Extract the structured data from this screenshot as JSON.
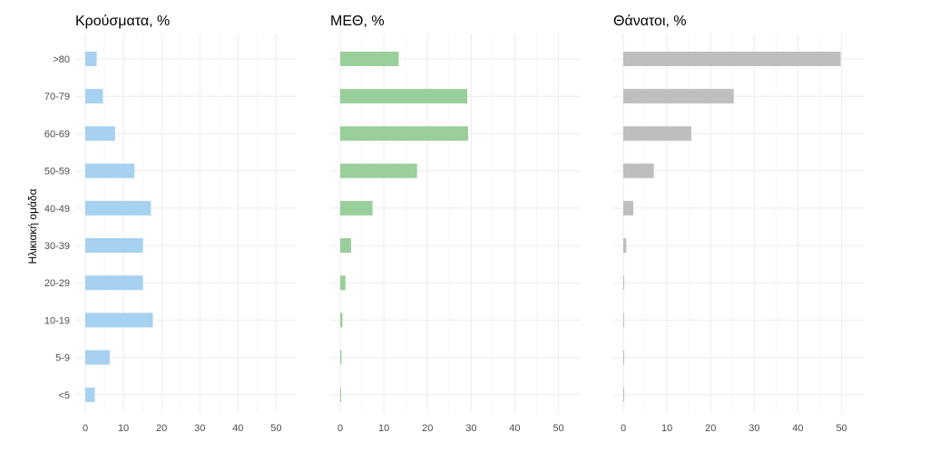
{
  "chart_data": {
    "type": "bar",
    "orientation": "horizontal",
    "ylabel": "Ηλικιακή ομάδα",
    "categories": [
      ">80",
      "70-79",
      "60-69",
      "50-59",
      "40-49",
      "30-39",
      "20-29",
      "10-19",
      "5-9",
      "<5"
    ],
    "xlim": [
      0,
      53
    ],
    "xticks": [
      0,
      10,
      20,
      30,
      40,
      50
    ],
    "grid": true,
    "panels": [
      {
        "title": "Κρούσματα, %",
        "color": "#a6d1f0",
        "values": [
          3.0,
          4.6,
          7.8,
          12.9,
          17.2,
          15.1,
          15.1,
          17.7,
          6.4,
          2.5
        ]
      },
      {
        "title": "ΜΕΘ, %",
        "color": "#99cf9a",
        "values": [
          13.4,
          29.1,
          29.3,
          17.6,
          7.4,
          2.5,
          1.2,
          0.5,
          0.3,
          0.2
        ]
      },
      {
        "title": "Θάνατοι, %",
        "color": "#bebebe",
        "values": [
          49.8,
          25.3,
          15.6,
          7.0,
          2.3,
          0.7,
          0.2,
          0.1,
          0.05,
          0.05
        ]
      }
    ]
  }
}
